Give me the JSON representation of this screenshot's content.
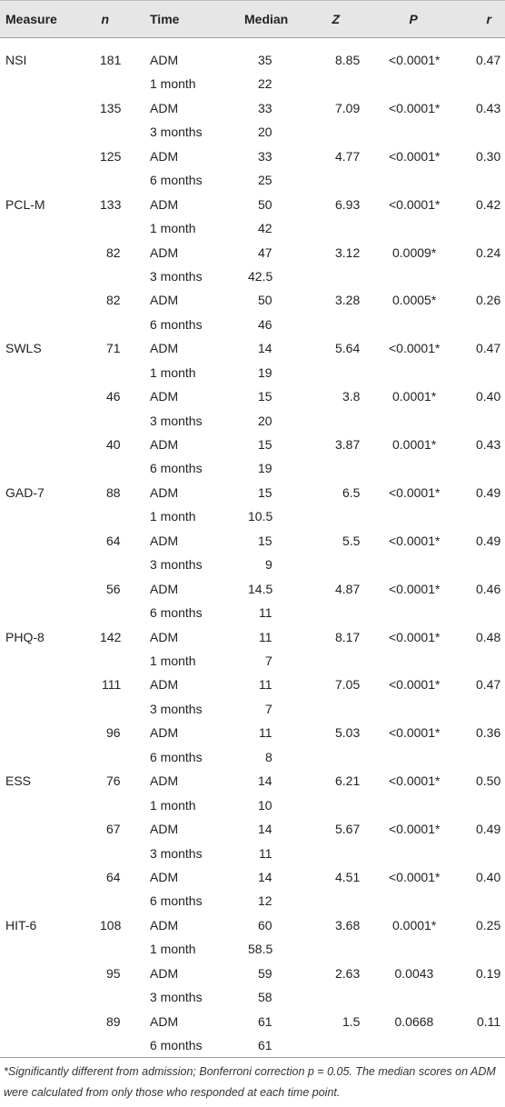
{
  "table": {
    "header": [
      "Measure",
      "n",
      "Time",
      "Median",
      "Z",
      "P",
      "r"
    ],
    "groups": [
      {
        "measure": "NSI",
        "rows": [
          {
            "n": "181",
            "time1": "ADM",
            "median1": "35",
            "z": "8.85",
            "p": "<0.0001*",
            "r": "0.47",
            "time2": "1 month",
            "median2": "22"
          },
          {
            "n": "135",
            "time1": "ADM",
            "median1": "33",
            "z": "7.09",
            "p": "<0.0001*",
            "r": "0.43",
            "time2": "3 months",
            "median2": "20"
          },
          {
            "n": "125",
            "time1": "ADM",
            "median1": "33",
            "z": "4.77",
            "p": "<0.0001*",
            "r": "0.30",
            "time2": "6 months",
            "median2": "25"
          }
        ]
      },
      {
        "measure": "PCL-M",
        "rows": [
          {
            "n": "133",
            "time1": "ADM",
            "median1": "50",
            "z": "6.93",
            "p": "<0.0001*",
            "r": "0.42",
            "time2": "1 month",
            "median2": "42"
          },
          {
            "n": "82",
            "time1": "ADM",
            "median1": "47",
            "z": "3.12",
            "p": "0.0009*",
            "r": "0.24",
            "time2": "3 months",
            "median2": "42.5"
          },
          {
            "n": "82",
            "time1": "ADM",
            "median1": "50",
            "z": "3.28",
            "p": "0.0005*",
            "r": "0.26",
            "time2": "6 months",
            "median2": "46"
          }
        ]
      },
      {
        "measure": "SWLS",
        "rows": [
          {
            "n": "71",
            "time1": "ADM",
            "median1": "14",
            "z": "5.64",
            "p": "<0.0001*",
            "r": "0.47",
            "time2": "1 month",
            "median2": "19"
          },
          {
            "n": "46",
            "time1": "ADM",
            "median1": "15",
            "z": "3.8",
            "p": "0.0001*",
            "r": "0.40",
            "time2": "3 months",
            "median2": "20"
          },
          {
            "n": "40",
            "time1": "ADM",
            "median1": "15",
            "z": "3.87",
            "p": "0.0001*",
            "r": "0.43",
            "time2": "6 months",
            "median2": "19"
          }
        ]
      },
      {
        "measure": "GAD-7",
        "rows": [
          {
            "n": "88",
            "time1": "ADM",
            "median1": "15",
            "z": "6.5",
            "p": "<0.0001*",
            "r": "0.49",
            "time2": "1 month",
            "median2": "10.5"
          },
          {
            "n": "64",
            "time1": "ADM",
            "median1": "15",
            "z": "5.5",
            "p": "<0.0001*",
            "r": "0.49",
            "time2": "3 months",
            "median2": "9"
          },
          {
            "n": "56",
            "time1": "ADM",
            "median1": "14.5",
            "z": "4.87",
            "p": "<0.0001*",
            "r": "0.46",
            "time2": "6 months",
            "median2": "11"
          }
        ]
      },
      {
        "measure": "PHQ-8",
        "rows": [
          {
            "n": "142",
            "time1": "ADM",
            "median1": "11",
            "z": "8.17",
            "p": "<0.0001*",
            "r": "0.48",
            "time2": "1 month",
            "median2": "7"
          },
          {
            "n": "111",
            "time1": "ADM",
            "median1": "11",
            "z": "7.05",
            "p": "<0.0001*",
            "r": "0.47",
            "time2": "3 months",
            "median2": "7"
          },
          {
            "n": "96",
            "time1": "ADM",
            "median1": "11",
            "z": "5.03",
            "p": "<0.0001*",
            "r": "0.36",
            "time2": "6 months",
            "median2": "8"
          }
        ]
      },
      {
        "measure": "ESS",
        "rows": [
          {
            "n": "76",
            "time1": "ADM",
            "median1": "14",
            "z": "6.21",
            "p": "<0.0001*",
            "r": "0.50",
            "time2": "1 month",
            "median2": "10"
          },
          {
            "n": "67",
            "time1": "ADM",
            "median1": "14",
            "z": "5.67",
            "p": "<0.0001*",
            "r": "0.49",
            "time2": "3 months",
            "median2": "11"
          },
          {
            "n": "64",
            "time1": "ADM",
            "median1": "14",
            "z": "4.51",
            "p": "<0.0001*",
            "r": "0.40",
            "time2": "6 months",
            "median2": "12"
          }
        ]
      },
      {
        "measure": "HIT-6",
        "rows": [
          {
            "n": "108",
            "time1": "ADM",
            "median1": "60",
            "z": "3.68",
            "p": "0.0001*",
            "r": "0.25",
            "time2": "1 month",
            "median2": "58.5"
          },
          {
            "n": "95",
            "time1": "ADM",
            "median1": "59",
            "z": "2.63",
            "p": "0.0043",
            "r": "0.19",
            "time2": "3 months",
            "median2": "58"
          },
          {
            "n": "89",
            "time1": "ADM",
            "median1": "61",
            "z": "1.5",
            "p": "0.0668",
            "r": "0.11",
            "time2": "6 months",
            "median2": "61"
          }
        ]
      }
    ],
    "footnote": "*Significantly different from admission; Bonferroni correction p = 0.05. The median scores on ADM were calculated from only those who responded at each time point."
  }
}
